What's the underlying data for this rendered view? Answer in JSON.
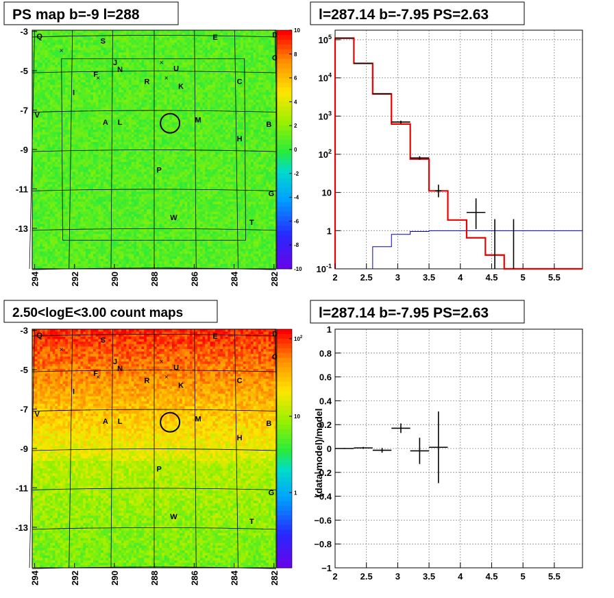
{
  "panels": {
    "tl": {
      "title": "PS map b=-9 l=288"
    },
    "tr": {
      "title": "l=287.14 b=-7.95 PS=2.63"
    },
    "bl": {
      "title": "2.50<logE<3.00 count maps"
    },
    "br": {
      "title": "l=287.14 b=-7.95 PS=2.63",
      "ylabel": "(data-model)/model"
    }
  },
  "chart_data": [
    {
      "type": "heatmap",
      "title": "PS map b=-9 l=288",
      "x_ticks": [
        "294",
        "292",
        "290",
        "288",
        "286",
        "284",
        "282"
      ],
      "y_ticks": [
        "-3",
        "-5",
        "-7",
        "-9",
        "-11",
        "-13"
      ],
      "colorbar_ticks": [
        "10",
        "8",
        "6",
        "4",
        "2",
        "0",
        "-2",
        "-4",
        "-6",
        "-8",
        "-10"
      ],
      "colorbar_range": [
        -10,
        10
      ],
      "typical_value": 1,
      "circle_marker": {
        "l": 287.14,
        "b": -7.95
      },
      "source_labels": [
        "Q",
        "S",
        "E",
        "D",
        "O",
        "J",
        "U",
        "F",
        "N",
        "R",
        "K",
        "C",
        "I",
        "V",
        "A",
        "L",
        "M",
        "B",
        "H",
        "P",
        "G",
        "W",
        "T"
      ]
    },
    {
      "type": "line",
      "title": "l=287.14 b=-7.95 PS=2.63",
      "x_ticks": [
        "2",
        "2.5",
        "3",
        "3.5",
        "4",
        "4.5",
        "5",
        "5.5"
      ],
      "y_ticks": [
        "10^5",
        "10^4",
        "10^3",
        "10^2",
        "10",
        "1",
        "10^-1"
      ],
      "x_range": [
        2,
        5.95
      ],
      "y_range_log10": [
        -1,
        5.25
      ],
      "series": [
        {
          "style": "red-step",
          "edges": [
            2.0,
            2.3,
            2.6,
            2.9,
            3.2,
            3.5,
            3.8,
            4.1,
            4.4,
            4.7,
            5.95
          ],
          "values": [
            110000,
            24000,
            3800,
            620,
            75,
            11,
            1.9,
            0.65,
            0.23,
            0.1
          ]
        },
        {
          "style": "blue-step",
          "edges": [
            2.6,
            2.9,
            3.2,
            3.5,
            3.8,
            4.1,
            4.4,
            4.7,
            5.95
          ],
          "values": [
            0.38,
            0.8,
            0.95,
            1.0,
            1.0,
            1.0,
            1.0,
            1.0
          ]
        },
        {
          "style": "black-points",
          "points": [
            {
              "x": 2.15,
              "y": 110000,
              "xe": 0.15
            },
            {
              "x": 2.45,
              "y": 24000,
              "xe": 0.15
            },
            {
              "x": 2.75,
              "y": 3850,
              "xe": 0.15
            },
            {
              "x": 3.05,
              "y": 700,
              "xe": 0.15,
              "yl": 640,
              "yh": 760
            },
            {
              "x": 3.35,
              "y": 80,
              "xe": 0.15,
              "yl": 72,
              "yh": 89
            },
            {
              "x": 3.65,
              "y": 11,
              "xe": 0.05,
              "yl": 7.5,
              "yh": 16
            },
            {
              "x": 4.25,
              "y": 3,
              "xe": 0.15,
              "yl": 1.1,
              "yh": 7
            },
            {
              "x": 4.55,
              "y": 1.0,
              "yl": 0.1,
              "yh": 2.0
            },
            {
              "x": 4.85,
              "y": 1.0,
              "yl": 0.1,
              "yh": 2.0
            }
          ]
        }
      ]
    },
    {
      "type": "heatmap",
      "title": "2.50<logE<3.00 count maps",
      "x_ticks": [
        "294",
        "292",
        "290",
        "288",
        "286",
        "284",
        "282"
      ],
      "y_ticks": [
        "-3",
        "-5",
        "-7",
        "-9",
        "-11",
        "-13"
      ],
      "colorbar_ticks": [
        "10^2",
        "10",
        "1"
      ],
      "colorbar_scale": "log",
      "gradient": "high counts at top (red), lower toward bottom (green/yellow)",
      "circle_marker": {
        "l": 287.14,
        "b": -7.95
      },
      "source_labels": [
        "Q",
        "S",
        "E",
        "D",
        "O",
        "J",
        "U",
        "F",
        "N",
        "R",
        "K",
        "C",
        "I",
        "V",
        "A",
        "L",
        "M",
        "B",
        "H",
        "P",
        "G",
        "W",
        "T"
      ]
    },
    {
      "type": "scatter",
      "title": "l=287.14 b=-7.95 PS=2.63",
      "ylabel": "(data-model)/model",
      "x_ticks": [
        "2",
        "2.5",
        "3",
        "3.5",
        "4",
        "4.5",
        "5",
        "5.5"
      ],
      "y_ticks": [
        "1",
        "0.8",
        "0.6",
        "0.4",
        "0.2",
        "0",
        "-0.2",
        "-0.4",
        "-0.6",
        "-0.8",
        "-1"
      ],
      "x_range": [
        2,
        5.95
      ],
      "y_range": [
        -1,
        1
      ],
      "points": [
        {
          "x": 2.15,
          "y": 0.0,
          "xe": 0.15,
          "ye": 0.004
        },
        {
          "x": 2.45,
          "y": 0.005,
          "xe": 0.15,
          "ye": 0.008
        },
        {
          "x": 2.75,
          "y": -0.015,
          "xe": 0.15,
          "ye": 0.02
        },
        {
          "x": 3.05,
          "y": 0.17,
          "xe": 0.15,
          "ye": 0.04
        },
        {
          "x": 3.35,
          "y": -0.02,
          "xe": 0.15,
          "ye": 0.11
        },
        {
          "x": 3.65,
          "y": 0.01,
          "xe": 0.15,
          "ye": 0.3
        }
      ]
    }
  ]
}
